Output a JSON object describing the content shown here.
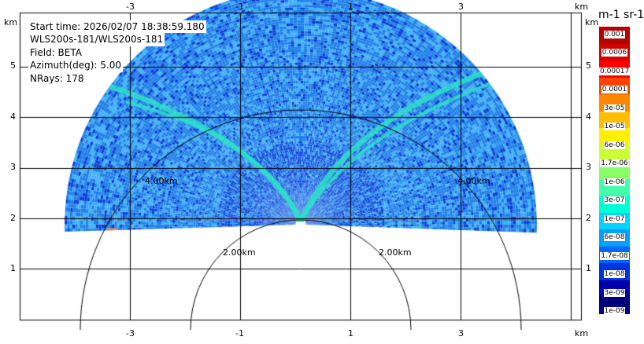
{
  "info": {
    "start_time": "Start time: 2026/02/07 18:38:59.180",
    "site": "WLS200s-181/WLS200s-181",
    "field": "Field: BETA",
    "azimuth": "Azimuth(deg): 5.00",
    "nrays": "NRays: 178"
  },
  "axes": {
    "x_ticks": [
      "-3",
      "-1",
      "1",
      "3"
    ],
    "y_ticks": [
      "5",
      "4",
      "3",
      "2",
      "1"
    ],
    "unit": "km"
  },
  "range_rings": [
    "2.00km",
    "2.00km",
    "4.00km",
    "4.00km"
  ],
  "colorbar": {
    "title": "m-1 sr-1",
    "labels": [
      "0.001",
      "0.0006",
      "0.00017",
      "0.0001",
      "3e-05",
      "1e-05",
      "6e-06",
      "1.7e-06",
      "1e-06",
      "3e-07",
      "1e-07",
      "6e-08",
      "1.7e-08",
      "1e-08",
      "3e-09",
      "1e-09"
    ],
    "colors": [
      "#b70000",
      "#d40000",
      "#ff0000",
      "#ff4400",
      "#ff8800",
      "#ffbf00",
      "#ffee00",
      "#ccff33",
      "#88ff66",
      "#44ffaa",
      "#00ffd5",
      "#00d4ff",
      "#00a0ff",
      "#0066ff",
      "#0033dd",
      "#0000aa",
      "#000077"
    ]
  },
  "scan_colors": {
    "background": "#1f7fe8",
    "light": "#3fb0f5",
    "dark": "#0a3fd8",
    "beam": "#2de0c8",
    "hot": "#ff8800"
  }
}
